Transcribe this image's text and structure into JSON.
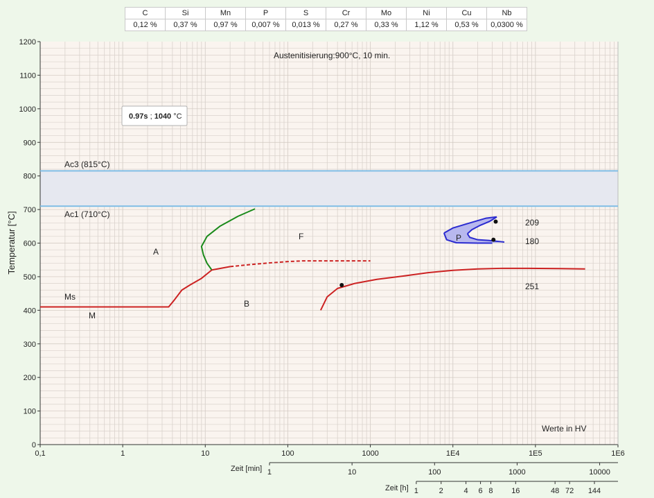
{
  "composition": {
    "elements": [
      "C",
      "Si",
      "Mn",
      "P",
      "S",
      "Cr",
      "Mo",
      "Ni",
      "Cu",
      "Nb"
    ],
    "values": [
      "0,12 %",
      "0,37 %",
      "0,97 %",
      "0,007 %",
      "0,013 %",
      "0,27 %",
      "0,33 %",
      "1,12 %",
      "0,53 %",
      "0,0300 %"
    ]
  },
  "colors": {
    "bainite": "#cc2222",
    "ferrite": "#1a8a1a",
    "pearlite": "#2b2bd0",
    "pearlite_fill": "#b8b8ee",
    "ac_lines": "#7fbde6",
    "ac_band": "#e6e8f0",
    "plot_bg": "#faf4ef",
    "grid": "#d9d2cc"
  },
  "chart_data": {
    "type": "line",
    "title": "Austenitisierung:900°C, 10 min.",
    "ylabel": "Temperatur [°C]",
    "x_scale": "log",
    "x_unit": "s",
    "xlim": [
      0.1,
      1000000
    ],
    "ylim": [
      0,
      1200
    ],
    "grid": true,
    "x_tick_labels": [
      "0,1",
      "1",
      "10",
      "100",
      "1000",
      "1E4",
      "1E5",
      "1E6"
    ],
    "y_ticks": [
      0,
      100,
      200,
      300,
      400,
      500,
      600,
      700,
      800,
      900,
      1000,
      1100,
      1200
    ],
    "minutes_axis": {
      "label": "Zeit [min]",
      "ticks": [
        "1",
        "10",
        "100",
        "1000",
        "10000"
      ]
    },
    "hours_axis": {
      "label": "Zeit [h]",
      "ticks": [
        "1",
        "2",
        "4",
        "6",
        "8",
        "16",
        "48",
        "72",
        "144"
      ]
    },
    "cursor_readout": {
      "time": "0.97s",
      "sep": " ; ",
      "temp": "1040",
      "unit": " °C"
    },
    "ac3": {
      "label": "Ac3 (815°C)",
      "value": 815
    },
    "ac1": {
      "label": "Ac1 (710°C)",
      "value": 710
    },
    "ms_label": "Ms",
    "phase_labels": {
      "A": "A",
      "F": "F",
      "B": "B",
      "M": "M",
      "P": "P"
    },
    "footnote": "Werte in HV",
    "series": [
      {
        "kind": "martensite_start",
        "points": [
          [
            0.1,
            410
          ],
          [
            3.6,
            410
          ],
          [
            4.2,
            430
          ],
          [
            5.2,
            460
          ],
          [
            6.5,
            475
          ],
          [
            9,
            495
          ],
          [
            12,
            520
          ]
        ]
      },
      {
        "kind": "ferrite_start",
        "points": [
          [
            40,
            702
          ],
          [
            25,
            680
          ],
          [
            15,
            650
          ],
          [
            10.5,
            620
          ],
          [
            9,
            590
          ],
          [
            9.5,
            565
          ],
          [
            10.5,
            540
          ],
          [
            12,
            520
          ]
        ]
      },
      {
        "kind": "bainite_start",
        "points": [
          [
            12,
            520
          ],
          [
            20,
            530
          ],
          [
            35,
            536
          ],
          [
            60,
            541
          ],
          [
            100,
            545
          ],
          [
            150,
            547
          ],
          [
            250,
            547
          ],
          [
            500,
            547
          ],
          [
            1000,
            547
          ]
        ],
        "dashed_from": [
          12,
          520
        ]
      },
      {
        "kind": "bainite_end",
        "points": [
          [
            250,
            400
          ],
          [
            300,
            440
          ],
          [
            400,
            465
          ],
          [
            650,
            480
          ],
          [
            1200,
            492
          ],
          [
            2500,
            502
          ],
          [
            5000,
            512
          ],
          [
            10000.0,
            519
          ],
          [
            20000.0,
            523
          ],
          [
            40000.0,
            525
          ],
          [
            80000.0,
            525
          ],
          [
            200000.0,
            524
          ],
          [
            400000.0,
            523
          ]
        ]
      },
      {
        "kind": "pearlite_outer_upper",
        "points": [
          [
            34000.0,
            678
          ],
          [
            25000.0,
            674
          ],
          [
            15000.0,
            658
          ],
          [
            10000.0,
            645
          ],
          [
            7800,
            630
          ]
        ]
      },
      {
        "kind": "pearlite_outer_lower",
        "points": [
          [
            7800,
            630
          ],
          [
            8400,
            610
          ],
          [
            11000.0,
            601
          ],
          [
            20000.0,
            600
          ],
          [
            30000.0,
            600
          ]
        ]
      },
      {
        "kind": "pearlite_inner_upper",
        "points": [
          [
            34000.0,
            678
          ],
          [
            28000.0,
            665
          ],
          [
            21000.0,
            652
          ],
          [
            17000.0,
            640
          ],
          [
            15000.0,
            628
          ]
        ]
      },
      {
        "kind": "pearlite_inner_lower",
        "points": [
          [
            15000.0,
            628
          ],
          [
            16000.0,
            617
          ],
          [
            20000.0,
            610
          ],
          [
            27000.0,
            608
          ],
          [
            42000.0,
            603
          ]
        ]
      }
    ],
    "hardness_points": [
      {
        "x": 450,
        "y": 475,
        "label": "251"
      },
      {
        "x": 33000.0,
        "y": 664,
        "label": "209"
      },
      {
        "x": 31000.0,
        "y": 610,
        "label": "180"
      }
    ]
  }
}
